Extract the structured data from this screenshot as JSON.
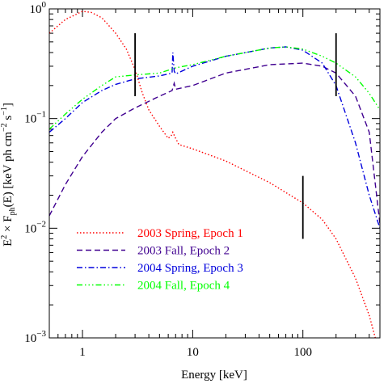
{
  "chart_data": {
    "type": "line",
    "xscale": "log",
    "yscale": "log",
    "xlim": [
      0.5,
      500
    ],
    "ylim": [
      0.001,
      1
    ],
    "xlabel": "Energy [keV]",
    "ylabel": "E² × F_ph(E) [keV ph cm⁻² s⁻¹]",
    "xticks": [
      {
        "value": 1,
        "label": "1"
      },
      {
        "value": 10,
        "label": "10"
      },
      {
        "value": 100,
        "label": "100"
      }
    ],
    "yticks": [
      {
        "value": 0.001,
        "base": "10",
        "exp": "−3"
      },
      {
        "value": 0.01,
        "base": "10",
        "exp": "−2"
      },
      {
        "value": 0.1,
        "base": "10",
        "exp": "−1"
      },
      {
        "value": 1,
        "base": "10",
        "exp": "0"
      }
    ],
    "legend_position": "lower-left",
    "series": [
      {
        "name": "2003 Spring, Epoch 1",
        "color": "#ff0000",
        "dash": "1.5,2.5",
        "x": [
          0.5,
          0.7,
          1.0,
          1.2,
          1.5,
          2.0,
          2.5,
          3.0,
          3.5,
          4.0,
          5.0,
          6.0,
          6.4,
          6.6,
          6.9,
          7.5,
          10,
          20,
          50,
          100,
          150,
          200,
          300,
          400,
          500
        ],
        "y": [
          0.6,
          0.8,
          0.95,
          0.93,
          0.83,
          0.6,
          0.43,
          0.28,
          0.17,
          0.12,
          0.085,
          0.066,
          0.07,
          0.075,
          0.068,
          0.058,
          0.053,
          0.041,
          0.026,
          0.017,
          0.012,
          0.008,
          0.0035,
          0.0016,
          0.0007
        ]
      },
      {
        "name": "2003 Fall, Epoch 2",
        "color": "#400090",
        "dash": "7,4",
        "x": [
          0.5,
          0.7,
          1.0,
          1.5,
          2.0,
          3.0,
          5.0,
          6.5,
          6.8,
          7.0,
          10,
          20,
          50,
          100,
          150,
          200,
          300,
          400,
          500
        ],
        "y": [
          0.013,
          0.025,
          0.045,
          0.075,
          0.1,
          0.125,
          0.16,
          0.18,
          0.21,
          0.185,
          0.2,
          0.26,
          0.31,
          0.32,
          0.3,
          0.26,
          0.16,
          0.075,
          0.011
        ]
      },
      {
        "name": "2004 Spring, Epoch 3",
        "color": "#0000dd",
        "dash": "7,3,1.5,3",
        "x": [
          0.5,
          0.7,
          1.0,
          1.5,
          2.0,
          3.0,
          5.0,
          6.5,
          6.6,
          6.8,
          7.0,
          10,
          20,
          50,
          70,
          100,
          150,
          200,
          300,
          400,
          500
        ],
        "y": [
          0.075,
          0.1,
          0.14,
          0.18,
          0.205,
          0.23,
          0.245,
          0.26,
          0.4,
          0.27,
          0.255,
          0.3,
          0.37,
          0.44,
          0.45,
          0.42,
          0.32,
          0.2,
          0.06,
          0.02,
          0.01
        ]
      },
      {
        "name": "2004 Fall, Epoch 4",
        "color": "#00ff00",
        "dash": "7,3,1.5,3,1.5,3,1.5,3",
        "x": [
          0.5,
          0.7,
          1.0,
          1.5,
          2.0,
          3.0,
          5.0,
          7.0,
          10,
          20,
          50,
          70,
          100,
          150,
          200,
          300,
          400,
          500
        ],
        "y": [
          0.08,
          0.11,
          0.15,
          0.2,
          0.24,
          0.25,
          0.26,
          0.29,
          0.31,
          0.37,
          0.44,
          0.45,
          0.43,
          0.37,
          0.32,
          0.24,
          0.17,
          0.12
        ]
      }
    ],
    "markers": [
      {
        "x": 3,
        "ymin": 0.16,
        "ymax": 0.6
      },
      {
        "x": 100,
        "ymin": 0.008,
        "ymax": 0.03
      },
      {
        "x": 200,
        "ymin": 0.16,
        "ymax": 0.6
      }
    ]
  }
}
